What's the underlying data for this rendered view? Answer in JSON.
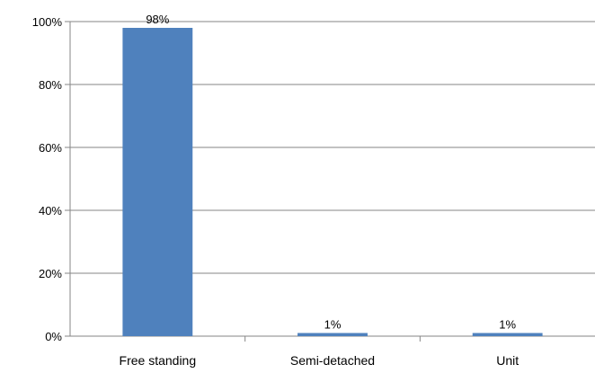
{
  "chart_data": {
    "type": "bar",
    "categories": [
      "Free standing",
      "Semi-detached",
      "Unit"
    ],
    "values": [
      98,
      1,
      1
    ],
    "data_labels": [
      "98%",
      "1%",
      "1%"
    ],
    "title": "",
    "xlabel": "",
    "ylabel": "",
    "ylim": [
      0,
      100
    ],
    "yticks": [
      0,
      20,
      40,
      60,
      80,
      100
    ],
    "ytick_labels": [
      "0%",
      "20%",
      "40%",
      "60%",
      "80%",
      "100%"
    ],
    "grid": true,
    "legend": "none",
    "colors": {
      "bar": "#4F81BD",
      "grid": "#868686",
      "axis": "#868686"
    }
  }
}
